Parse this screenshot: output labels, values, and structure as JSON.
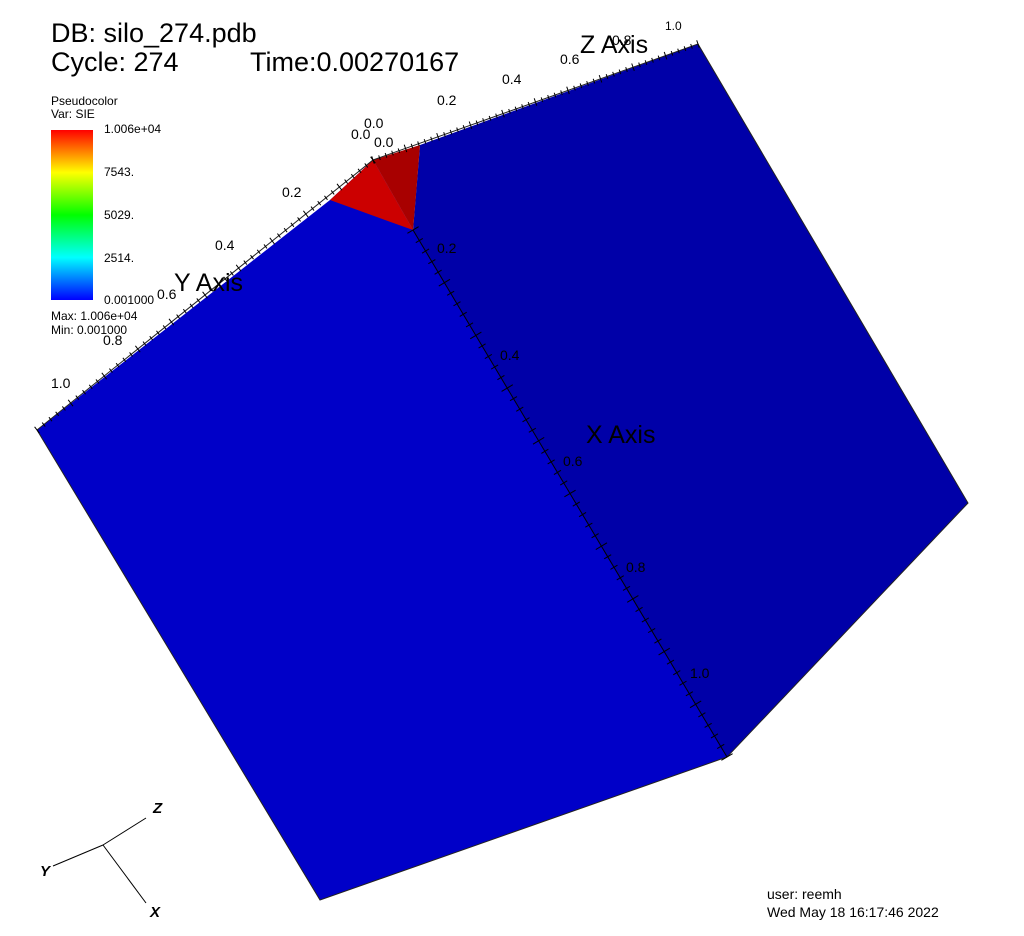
{
  "header": {
    "db": "DB: silo_274.pdb",
    "cycle": "Cycle: 274",
    "time": "Time:0.00270167"
  },
  "legend": {
    "plot_type": "Pseudocolor",
    "var": "Var: SIE",
    "ticks": [
      "1.006e+04",
      "7543.",
      "5029.",
      "2514.",
      "0.001000"
    ],
    "max": "Max:  1.006e+04",
    "min": "Min:  0.001000",
    "colors": [
      "#ff0000",
      "#ffff00",
      "#00ff00",
      "#00ffff",
      "#0000ff"
    ]
  },
  "axes": {
    "x_title": "X Axis",
    "y_title": "Y Axis",
    "z_title": "Z Axis",
    "x_ticks": [
      "0.0",
      "0.2",
      "0.4",
      "0.6",
      "0.8",
      "1.0"
    ],
    "y_ticks": [
      "0.0",
      "0.2",
      "0.4",
      "0.6",
      "0.8",
      "1.0"
    ],
    "z_ticks": [
      "0.0",
      "0.2",
      "0.4",
      "0.6",
      "0.8",
      "1.0"
    ]
  },
  "triad": {
    "x": "X",
    "y": "Y",
    "z": "Z"
  },
  "footer": {
    "user": "user: reemh",
    "date": "Wed May 18 16:17:46 2022"
  },
  "colors": {
    "left_face": "#0000c8",
    "right_face": "#0000a8",
    "hot_left": "#cc0000",
    "hot_right": "#a80000"
  }
}
